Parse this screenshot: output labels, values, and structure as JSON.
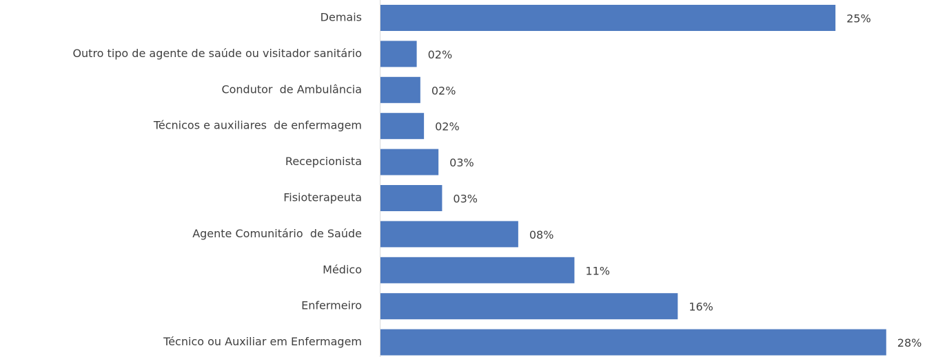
{
  "chart_data": {
    "type": "bar",
    "orientation": "horizontal",
    "categories": [
      "Demais",
      "Outro tipo de agente de saúde ou visitador sanitário",
      "Condutor  de Ambulância",
      "Técnicos e auxiliares  de enfermagem",
      "Recepcionista",
      "Fisioterapeuta",
      "Agente Comunitário  de Saúde",
      "Médico",
      "Enfermeiro",
      "Técnico ou Auxiliar em Enfermagem"
    ],
    "values": [
      25.1,
      2.0,
      2.2,
      2.4,
      3.2,
      3.4,
      7.6,
      10.7,
      16.4,
      27.9
    ],
    "value_labels": [
      "25%",
      "02%",
      "02%",
      "02%",
      "03%",
      "03%",
      "08%",
      "11%",
      "16%",
      "28%"
    ],
    "color": "#4e7abf"
  }
}
